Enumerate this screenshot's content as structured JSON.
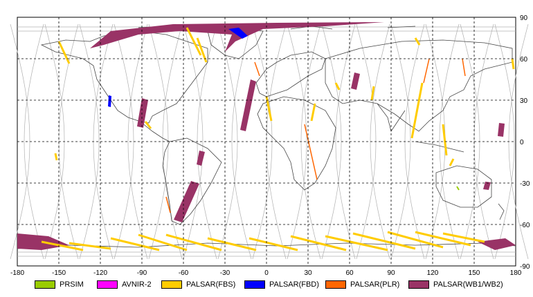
{
  "map": {
    "lon_ticks": [
      "-180",
      "-150",
      "-120",
      "-90",
      "-60",
      "-30",
      "0",
      "30",
      "60",
      "90",
      "120",
      "150",
      "180"
    ],
    "lat_ticks": [
      "90",
      "60",
      "30",
      "0",
      "-30",
      "-60",
      "-90"
    ],
    "lon_range": [
      -180,
      180
    ],
    "lat_range": [
      -90,
      90
    ],
    "grid": true
  },
  "legend": [
    {
      "label": "PRSIM",
      "color": "#99cc00"
    },
    {
      "label": "AVNIR-2",
      "color": "#ff00ff"
    },
    {
      "label": "PALSAR(FBS)",
      "color": "#ffcc00"
    },
    {
      "label": "PALSAR(FBD)",
      "color": "#0000ff"
    },
    {
      "label": "PALSAR(PLR)",
      "color": "#ff6600"
    },
    {
      "label": "PALSAR(WB1/WB2)",
      "color": "#993366"
    }
  ],
  "colors": {
    "coast": "#333333",
    "orbit": "#b0b0b0",
    "grid": "#000000"
  }
}
